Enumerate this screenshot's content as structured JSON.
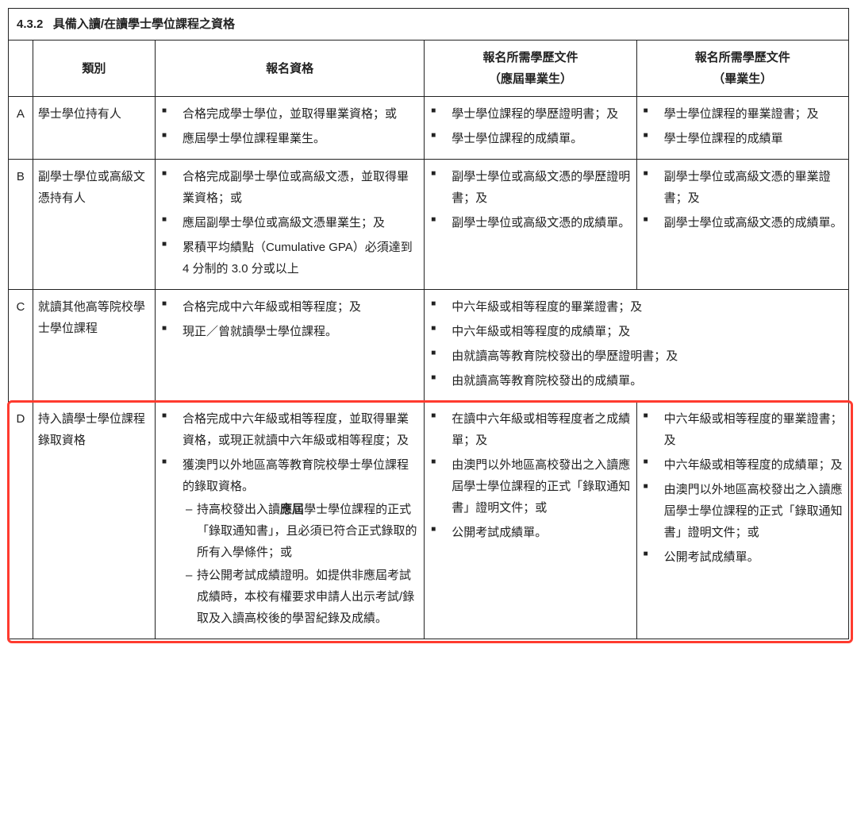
{
  "section": {
    "number": "4.3.2",
    "title": "具備入讀/在讀學士學位課程之資格"
  },
  "headers": {
    "category": "類別",
    "qualification": "報名資格",
    "docs_current": "報名所需學歷文件",
    "docs_current_sub": "（應屆畢業生）",
    "docs_grad": "報名所需學歷文件",
    "docs_grad_sub": "（畢業生）"
  },
  "rows": {
    "A": {
      "id": "A",
      "category": "學士學位持有人",
      "qual": [
        "合格完成學士學位，並取得畢業資格；或",
        "應屆學士學位課程畢業生。"
      ],
      "docs1": [
        "學士學位課程的學歷證明書；及",
        "學士學位課程的成績單。"
      ],
      "docs2": [
        "學士學位課程的畢業證書；及",
        "學士學位課程的成績單"
      ]
    },
    "B": {
      "id": "B",
      "category": "副學士學位或高級文憑持有人",
      "qual": [
        "合格完成副學士學位或高級文憑，並取得畢業資格；或",
        "應屆副學士學位或高級文憑畢業生；及",
        "累積平均績點（Cumulative GPA）必須達到 4 分制的 3.0 分或以上"
      ],
      "docs1": [
        "副學士學位或高級文憑的學歷證明書；及",
        "副學士學位或高級文憑的成績單。"
      ],
      "docs2": [
        "副學士學位或高級文憑的畢業證書；及",
        "副學士學位或高級文憑的成績單。"
      ]
    },
    "C": {
      "id": "C",
      "category": "就讀其他高等院校學士學位課程",
      "qual": [
        "合格完成中六年級或相等程度；及",
        "現正／曾就讀學士學位課程。"
      ],
      "docs_merged": [
        "中六年級或相等程度的畢業證書；及",
        "中六年級或相等程度的成績單；及",
        "由就讀高等教育院校發出的學歷證明書；及",
        "由就讀高等教育院校發出的成績單。"
      ]
    },
    "D": {
      "id": "D",
      "category": "持入讀學士學位課程錄取資格",
      "qual": [
        "合格完成中六年級或相等程度，並取得畢業資格，或現正就讀中六年級或相等程度；及",
        "獲澳門以外地區高等教育院校學士學位課程的錄取資格。"
      ],
      "qual_sub_prefix1": "持高校發出入讀",
      "qual_sub_bold": "應屆",
      "qual_sub_suffix1": "學士學位課程的正式「錄取通知書」，且必須已符合正式錄取的所有入學條件；或",
      "qual_sub2": "持公開考試成績證明。如提供非應屆考試成績時，本校有權要求申請人出示考試/錄取及入讀高校後的學習紀錄及成績。",
      "docs1": [
        "在讀中六年級或相等程度者之成績單；及",
        "由澳門以外地區高校發出之入讀應屆學士學位課程的正式「錄取通知書」證明文件；或",
        "公開考試成績單。"
      ],
      "docs2": [
        "中六年級或相等程度的畢業證書；及",
        "中六年級或相等程度的成績單；及",
        "由澳門以外地區高校發出之入讀應屆學士學位課程的正式「錄取通知書」證明文件；或",
        "公開考試成績單。"
      ]
    }
  },
  "highlight": {
    "color": "#ff3b2f"
  }
}
